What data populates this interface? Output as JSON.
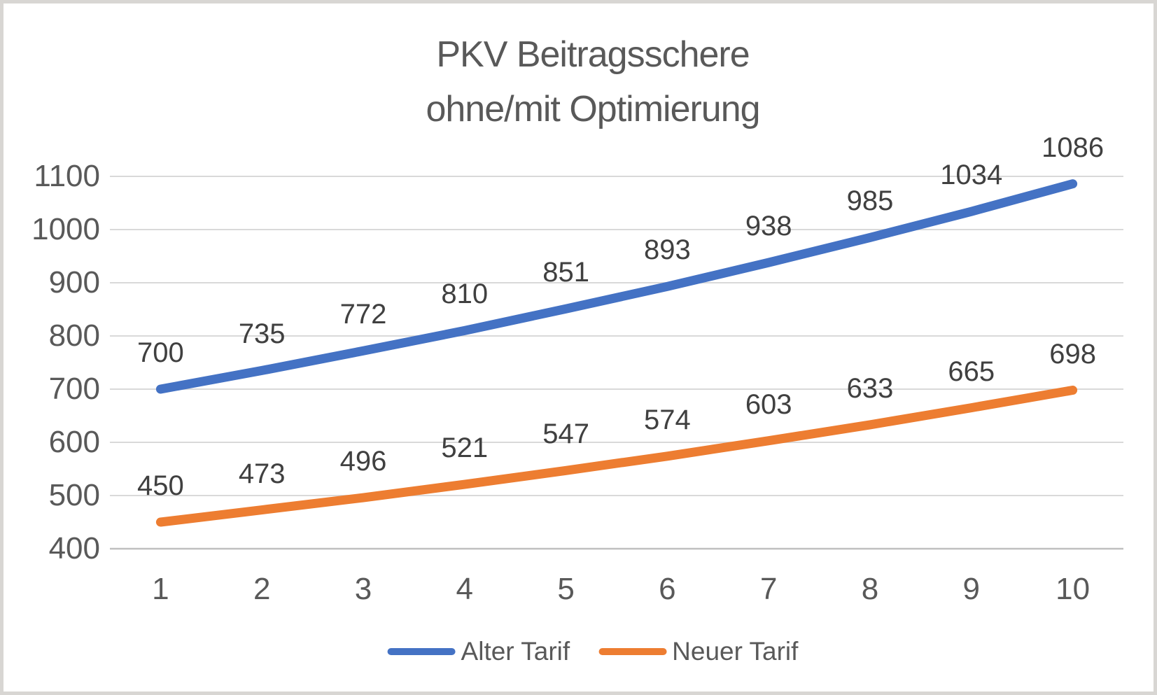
{
  "frame": {
    "background_color": "#ffffff",
    "border_color": "#d8d6d3"
  },
  "chart_data": {
    "type": "line",
    "title": "PKV Beitragsschere ohne/mit Optimierung",
    "title_line1": "PKV Beitragsschere",
    "title_line2": "ohne/mit Optimierung",
    "x": [
      1,
      2,
      3,
      4,
      5,
      6,
      7,
      8,
      9,
      10
    ],
    "x_axis": {
      "tick_labels": [
        "1",
        "2",
        "3",
        "4",
        "5",
        "6",
        "7",
        "8",
        "9",
        "10"
      ]
    },
    "y_axis": {
      "min": 400,
      "max": 1100,
      "step": 100,
      "tick_labels": [
        "400",
        "500",
        "600",
        "700",
        "800",
        "900",
        "1000",
        "1100"
      ]
    },
    "series": [
      {
        "name": "Alter Tarif",
        "color": "#4472C4",
        "values": [
          700,
          735,
          772,
          810,
          851,
          893,
          938,
          985,
          1034,
          1086
        ]
      },
      {
        "name": "Neuer Tarif",
        "color": "#ED7D31",
        "values": [
          450,
          473,
          496,
          521,
          547,
          574,
          603,
          633,
          665,
          698
        ]
      }
    ],
    "grid": true,
    "data_labels_position": "above",
    "legend_position": "bottom",
    "colors": {
      "gridline": "#d9d9d9",
      "axis_line": "#bfbfbf",
      "title_text": "#595959",
      "axis_text": "#595959",
      "data_label_text": "#404040"
    }
  }
}
